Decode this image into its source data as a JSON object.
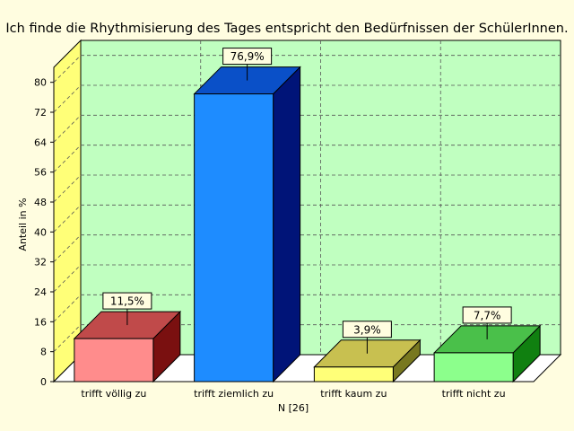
{
  "chart_data": {
    "type": "bar",
    "title": "Ich finde die Rhythmisierung des Tages entspricht den Bedürfnissen der SchülerInnen.",
    "xlabel": "N [26]",
    "ylabel": "Anteil in %",
    "categories": [
      "trifft völlig zu",
      "trifft ziemlich zu",
      "trifft kaum zu",
      "trifft nicht zu"
    ],
    "values": [
      11.5,
      76.9,
      3.9,
      7.7
    ],
    "data_labels": [
      "11,5%",
      "76,9%",
      "3,9%",
      "7,7%"
    ],
    "ylim": [
      0,
      84
    ],
    "yticks": [
      0,
      8,
      16,
      24,
      32,
      40,
      48,
      56,
      64,
      72,
      80
    ],
    "grid": true,
    "colors": {
      "bars": [
        "#ff8c8c",
        "#1e8cff",
        "#ffff78",
        "#8cff8c"
      ],
      "bar_tops": [
        "#c04a4a",
        "#0a50c8",
        "#c8c050",
        "#4ac04a"
      ],
      "bar_sides": [
        "#7a1010",
        "#001478",
        "#787820",
        "#108010"
      ],
      "plot_back": "#c0ffc0",
      "left_wall": "#ffff78",
      "floor": "#ffffff",
      "background": "#fffde0"
    }
  }
}
